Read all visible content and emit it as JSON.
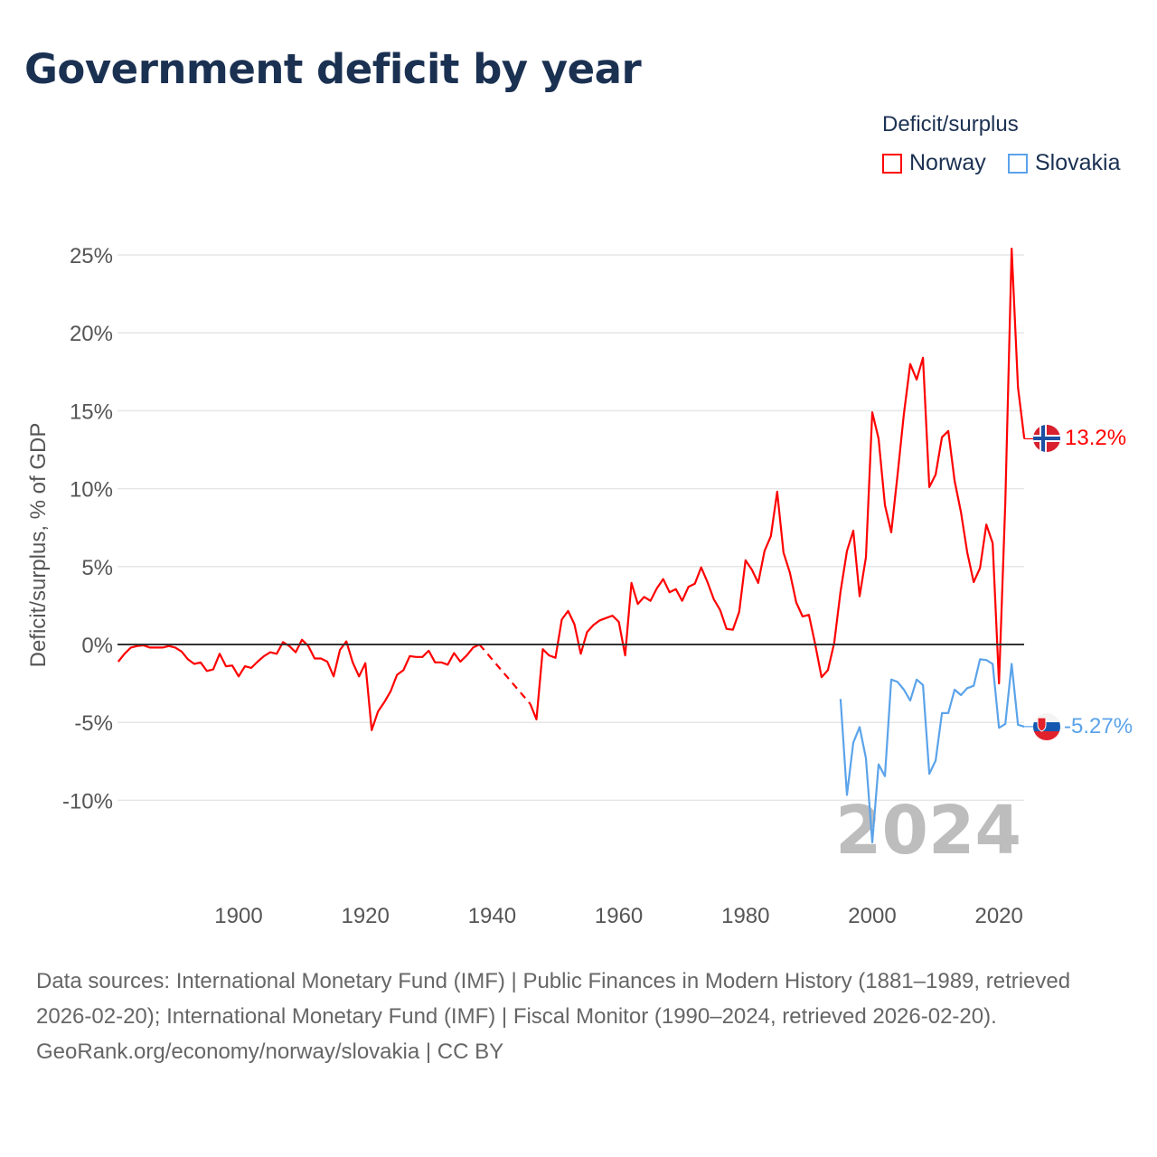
{
  "title": "Government deficit by year",
  "legend": {
    "title": "Deficit/surplus",
    "items": [
      {
        "name": "Norway",
        "color": "#ff0000"
      },
      {
        "name": "Slovakia",
        "color": "#5ba3ea"
      }
    ]
  },
  "watermark_year": "2024",
  "footer": {
    "sources": "Data sources: International Monetary Fund (IMF) | Public Finances in Modern History (1881–1989, retrieved 2026-02-20); International Monetary Fund (IMF) | Fiscal Monitor (1990–2024, retrieved 2026-02-20).",
    "credit": "GeoRank.org/economy/norway/slovakia | CC BY"
  },
  "chart_data": {
    "type": "line",
    "title": "Government deficit by year",
    "ylabel": "Deficit/surplus, % of GDP",
    "xlabel": "",
    "xlim": [
      1881,
      2024
    ],
    "ylim": [
      -14,
      26
    ],
    "yticks": [
      25,
      20,
      15,
      10,
      5,
      0,
      -5,
      -10
    ],
    "ytick_labels": [
      "25%",
      "20%",
      "15%",
      "10%",
      "5%",
      "0%",
      "-5%",
      "-10%"
    ],
    "xticks": [
      1900,
      1920,
      1940,
      1960,
      1980,
      2000,
      2020
    ],
    "xtick_labels": [
      "1900",
      "1920",
      "1940",
      "1960",
      "1980",
      "2000",
      "2020"
    ],
    "grid": true,
    "legend_position": "top-right",
    "series": [
      {
        "name": "Norway",
        "color": "#ff0000",
        "start_year": 1881,
        "end_label": "13.2%",
        "values": [
          -1.1,
          -0.6,
          -0.2,
          -0.1,
          -0.05,
          -0.2,
          -0.2,
          -0.2,
          -0.1,
          -0.2,
          -0.45,
          -0.95,
          -1.25,
          -1.15,
          -1.7,
          -1.6,
          -0.6,
          -1.4,
          -1.35,
          -2.05,
          -1.4,
          -1.5,
          -1.1,
          -0.75,
          -0.5,
          -0.6,
          0.15,
          -0.1,
          -0.5,
          0.3,
          -0.1,
          -0.9,
          -0.9,
          -1.1,
          -2.05,
          -0.35,
          0.2,
          -1.15,
          -2.05,
          -1.2,
          -5.5,
          -4.3,
          -3.7,
          -3.0,
          -1.95,
          -1.65,
          -0.75,
          -0.8,
          -0.8,
          -0.4,
          -1.15,
          -1.15,
          -1.3,
          -0.55,
          -1.1,
          -0.7,
          -0.2,
          0.0,
          null,
          null,
          null,
          null,
          null,
          null,
          null,
          -3.8,
          -4.8,
          -0.3,
          -0.7,
          -0.85,
          1.6,
          2.15,
          1.3,
          -0.6,
          0.8,
          1.25,
          1.55,
          1.7,
          1.85,
          1.45,
          -0.7,
          3.95,
          2.6,
          3.05,
          2.8,
          3.6,
          4.2,
          3.35,
          3.55,
          2.8,
          3.7,
          3.9,
          4.95,
          4.0,
          2.9,
          2.2,
          1.0,
          0.95,
          2.1,
          5.4,
          4.8,
          3.95,
          6.0,
          6.95,
          9.8,
          5.9,
          4.6,
          2.7,
          1.8,
          1.9,
          0.0,
          -2.1,
          -1.65,
          0.1,
          3.4,
          6.0,
          7.3,
          3.1,
          5.6,
          14.9,
          13.2,
          8.95,
          7.2,
          10.9,
          14.8,
          18.0,
          17.0,
          18.4,
          10.1,
          10.9,
          13.3,
          13.7,
          10.5,
          8.5,
          5.9,
          4.0,
          4.9,
          7.7,
          6.5,
          -2.5,
          9.15,
          25.4,
          16.5,
          13.2
        ]
      },
      {
        "name": "Slovakia",
        "color": "#5ba3ea",
        "start_year": 1995,
        "end_label": "-5.27%",
        "values": [
          -3.5,
          -9.65,
          -6.3,
          -5.3,
          -7.3,
          -12.7,
          -7.7,
          -8.45,
          -2.25,
          -2.4,
          -2.9,
          -3.6,
          -2.25,
          -2.6,
          -8.3,
          -7.45,
          -4.4,
          -4.4,
          -2.9,
          -3.25,
          -2.8,
          -2.65,
          -0.95,
          -1.0,
          -1.25,
          -5.35,
          -5.1,
          -1.25,
          -5.15,
          -5.27
        ]
      }
    ]
  }
}
